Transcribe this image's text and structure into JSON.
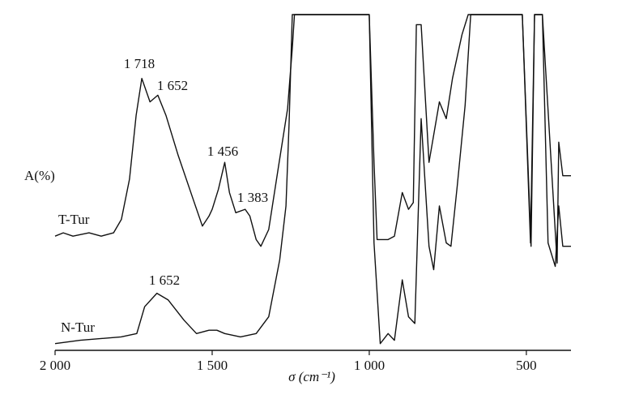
{
  "chart_data": {
    "type": "line",
    "xlabel": "σ (cm⁻¹)",
    "ylabel": "A(%)",
    "xlim": [
      2000,
      358
    ],
    "ylim": [
      0,
      100
    ],
    "xticks": [
      {
        "value": 2000,
        "label": "2 000"
      },
      {
        "value": 1500,
        "label": "1 500"
      },
      {
        "value": 1000,
        "label": "1 000"
      },
      500
    ],
    "annotations": [
      "1 718",
      "1 652",
      "1 456",
      "1 383",
      "1 652"
    ],
    "series": [
      {
        "name": "T-Tur",
        "color": "#111111",
        "x": [
          2000,
          1974,
          1943,
          1892,
          1853,
          1814,
          1789,
          1763,
          1742,
          1724,
          1698,
          1673,
          1647,
          1608,
          1557,
          1531,
          1510,
          1500,
          1480,
          1460,
          1445,
          1425,
          1395,
          1380,
          1360,
          1345,
          1320,
          1290,
          1260,
          1245,
          1238,
          1000,
          985,
          975,
          940,
          920,
          895,
          875,
          860,
          850,
          835,
          810,
          777,
          755,
          735,
          705,
          685,
          513,
          487,
          474,
          449,
          402,
          397,
          384,
          358
        ],
        "values": [
          34,
          35,
          34,
          35,
          34,
          35,
          39,
          51,
          70,
          81,
          74,
          76,
          70,
          58,
          44,
          37,
          40,
          42,
          48,
          56,
          47,
          41,
          42,
          40,
          33,
          31,
          36,
          54,
          72,
          90,
          100,
          100,
          56,
          33,
          33,
          34,
          47,
          42,
          44,
          97,
          97,
          56,
          74,
          69,
          81,
          94,
          100,
          100,
          32,
          100,
          100,
          26,
          62,
          52,
          52
        ]
      },
      {
        "name": "N-Tur",
        "color": "#111111",
        "x": [
          2000,
          1920,
          1790,
          1740,
          1715,
          1676,
          1640,
          1590,
          1550,
          1510,
          1485,
          1460,
          1410,
          1360,
          1320,
          1285,
          1265,
          1255,
          1245,
          1000,
          985,
          965,
          940,
          920,
          895,
          875,
          855,
          835,
          810,
          795,
          777,
          755,
          740,
          720,
          695,
          677,
          513,
          485,
          474,
          449,
          431,
          408,
          397,
          384,
          358
        ],
        "values": [
          2,
          3,
          4,
          5,
          13,
          17,
          15,
          9,
          5,
          6,
          6,
          5,
          4,
          5,
          10,
          27,
          43,
          68,
          100,
          100,
          32,
          2,
          5,
          3,
          21,
          10,
          8,
          69,
          31,
          24,
          43,
          32,
          31,
          49,
          73,
          100,
          100,
          31,
          100,
          100,
          32,
          25,
          43,
          31,
          31
        ]
      }
    ]
  }
}
